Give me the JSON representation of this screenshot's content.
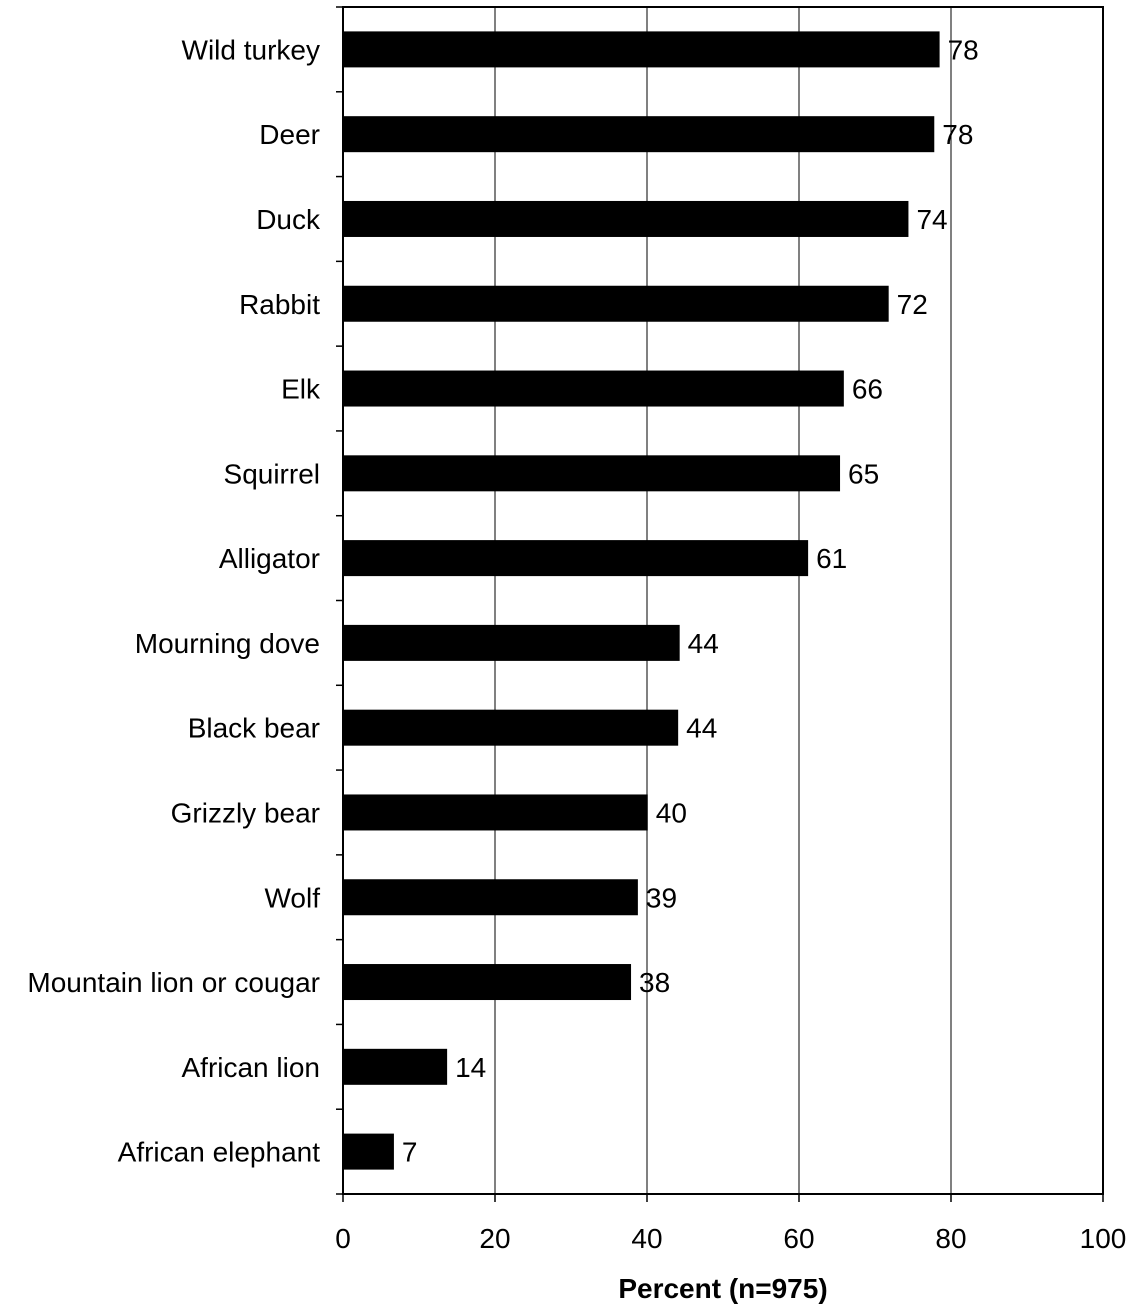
{
  "chart_data": {
    "type": "bar",
    "orientation": "horizontal",
    "categories": [
      "Wild turkey",
      "Deer",
      "Duck",
      "Rabbit",
      "Elk",
      "Squirrel",
      "Alligator",
      "Mourning dove",
      "Black bear",
      "Grizzly bear",
      "Wolf",
      "Mountain lion or cougar",
      "African lion",
      "African elephant"
    ],
    "values": [
      78.5,
      77.8,
      74.4,
      71.8,
      65.9,
      65.4,
      61.2,
      44.3,
      44.1,
      40.1,
      38.8,
      37.9,
      13.7,
      6.7
    ],
    "data_labels": [
      "78",
      "78",
      "74",
      "72",
      "66",
      "65",
      "61",
      "44",
      "44",
      "40",
      "39",
      "38",
      "14",
      "7"
    ],
    "xlabel": "Percent (n=975)",
    "xlim": [
      0,
      100
    ],
    "xticks": [
      0,
      20,
      40,
      60,
      80,
      100
    ],
    "grid": "vertical",
    "legend": "none",
    "colors": {
      "bar": "#000000",
      "axis": "#000000",
      "grid": "#000000",
      "background": "#ffffff"
    }
  }
}
